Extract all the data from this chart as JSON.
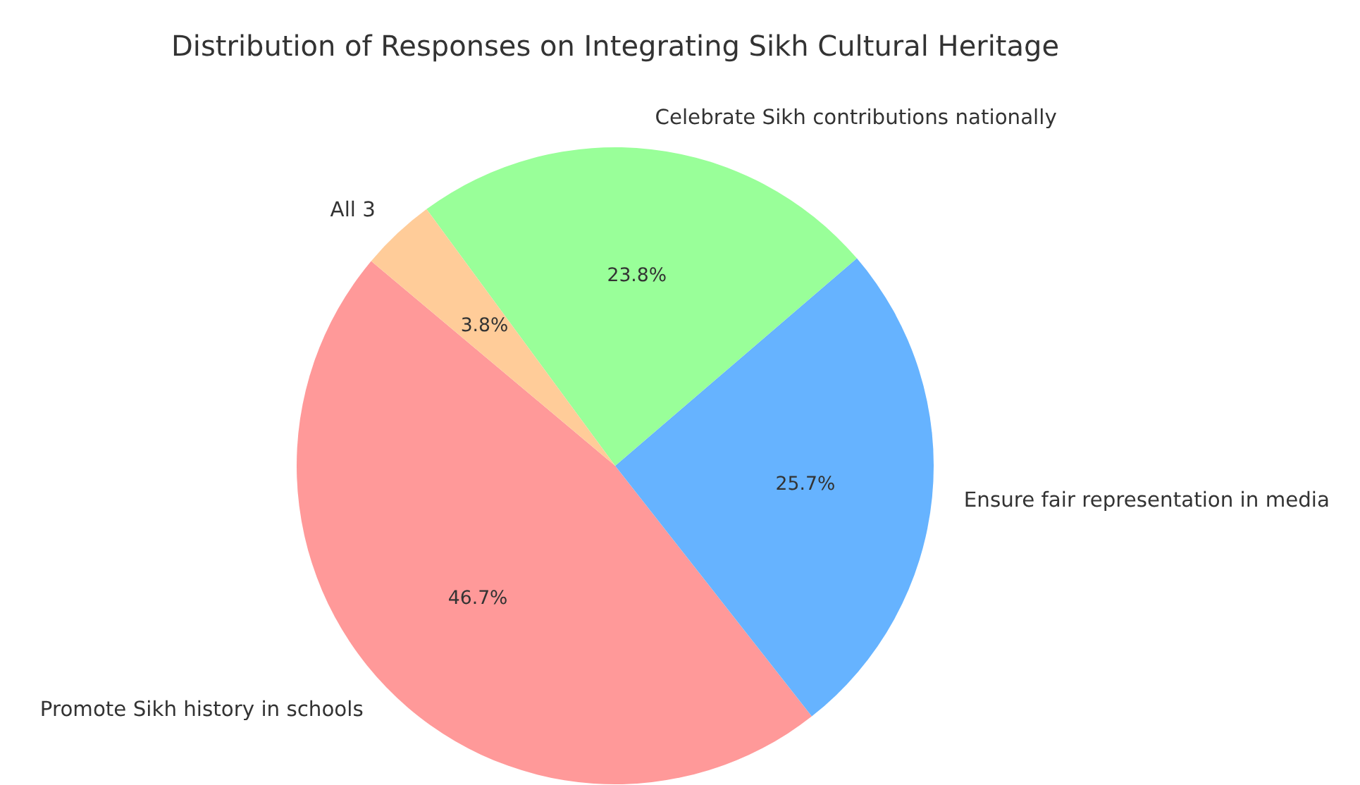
{
  "chart_data": {
    "type": "pie",
    "title": "Distribution of Responses on Integrating Sikh Cultural Heritage",
    "categories": [
      "Promote Sikh history in schools",
      "Ensure fair representation in media",
      "Celebrate Sikh contributions nationally",
      "All 3"
    ],
    "values": [
      46.7,
      25.7,
      23.8,
      3.8
    ],
    "value_labels": [
      "46.7%",
      "25.7%",
      "23.8%",
      "3.8%"
    ],
    "colors": [
      "#ff9999",
      "#66b3ff",
      "#99ff99",
      "#ffcc99"
    ]
  }
}
